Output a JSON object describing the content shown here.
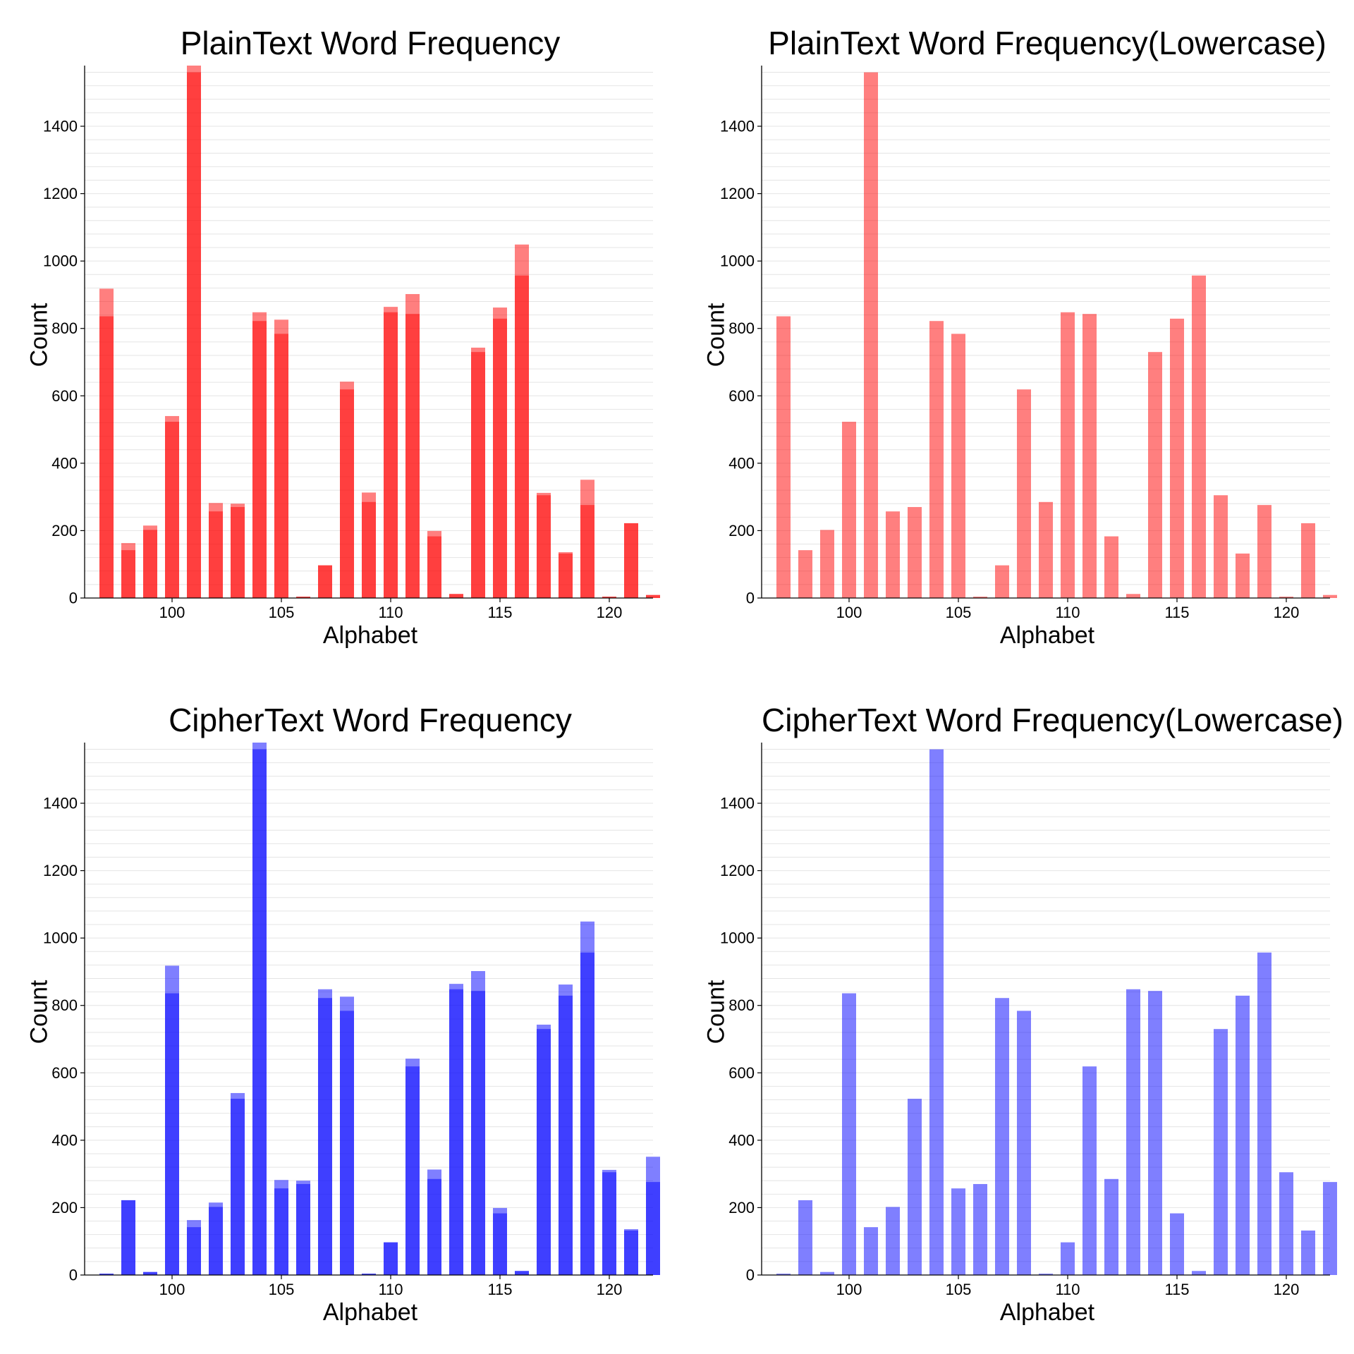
{
  "colors": {
    "plain": "#ff0000",
    "cipher": "#0000ff",
    "grid": "#e4e4e4",
    "axis": "#000000"
  },
  "chart_data": [
    {
      "type": "bar",
      "title": "PlainText Word Frequency",
      "xlabel": "Alphabet",
      "ylabel": "Count",
      "xlim": [
        96,
        122
      ],
      "ylim": [
        0,
        1580
      ],
      "xticks": [
        100,
        105,
        110,
        115,
        120
      ],
      "yticks": [
        0,
        200,
        400,
        600,
        800,
        1000,
        1200,
        1400
      ],
      "grid": "horizontal minor",
      "color": "#ff0000",
      "overlay": true,
      "x": [
        97,
        98,
        99,
        100,
        101,
        102,
        103,
        104,
        105,
        106,
        107,
        108,
        109,
        110,
        111,
        112,
        113,
        114,
        115,
        116,
        117,
        118,
        119,
        120,
        121,
        122
      ],
      "series": [
        {
          "opacity": 0.5,
          "values": [
            918,
            163,
            215,
            540,
            1580,
            282,
            280,
            848,
            826,
            4,
            97,
            642,
            313,
            864,
            902,
            199,
            12,
            743,
            862,
            1049,
            312,
            136,
            351,
            4,
            222,
            9
          ]
        },
        {
          "opacity": 0.5,
          "values": [
            836,
            142,
            202,
            523,
            1560,
            257,
            270,
            822,
            784,
            4,
            97,
            619,
            285,
            848,
            843,
            183,
            12,
            730,
            829,
            957,
            305,
            132,
            276,
            4,
            222,
            9
          ]
        }
      ]
    },
    {
      "type": "bar",
      "title": "PlainText Word Frequency(Lowercase)",
      "xlabel": "Alphabet",
      "ylabel": "Count",
      "xlim": [
        96,
        122
      ],
      "ylim": [
        0,
        1580
      ],
      "xticks": [
        100,
        105,
        110,
        115,
        120
      ],
      "yticks": [
        0,
        200,
        400,
        600,
        800,
        1000,
        1200,
        1400
      ],
      "grid": "horizontal minor",
      "color": "#ff0000",
      "overlay": false,
      "x": [
        97,
        98,
        99,
        100,
        101,
        102,
        103,
        104,
        105,
        106,
        107,
        108,
        109,
        110,
        111,
        112,
        113,
        114,
        115,
        116,
        117,
        118,
        119,
        120,
        121,
        122
      ],
      "series": [
        {
          "opacity": 0.5,
          "values": [
            836,
            142,
            202,
            523,
            1560,
            257,
            270,
            822,
            784,
            4,
            97,
            619,
            285,
            848,
            843,
            183,
            12,
            730,
            829,
            957,
            305,
            132,
            276,
            4,
            222,
            9
          ]
        }
      ]
    },
    {
      "type": "bar",
      "title": "CipherText Word Frequency",
      "xlabel": "Alphabet",
      "ylabel": "Count",
      "xlim": [
        96,
        122
      ],
      "ylim": [
        0,
        1580
      ],
      "xticks": [
        100,
        105,
        110,
        115,
        120
      ],
      "yticks": [
        0,
        200,
        400,
        600,
        800,
        1000,
        1200,
        1400
      ],
      "grid": "horizontal minor",
      "color": "#0000ff",
      "overlay": true,
      "x": [
        97,
        98,
        99,
        100,
        101,
        102,
        103,
        104,
        105,
        106,
        107,
        108,
        109,
        110,
        111,
        112,
        113,
        114,
        115,
        116,
        117,
        118,
        119,
        120,
        121,
        122
      ],
      "series": [
        {
          "opacity": 0.5,
          "values": [
            4,
            222,
            9,
            918,
            163,
            215,
            540,
            1580,
            282,
            280,
            848,
            826,
            4,
            97,
            642,
            313,
            864,
            902,
            199,
            12,
            743,
            862,
            1049,
            312,
            136,
            351
          ]
        },
        {
          "opacity": 0.5,
          "values": [
            4,
            222,
            9,
            836,
            142,
            202,
            523,
            1560,
            257,
            270,
            822,
            784,
            4,
            97,
            619,
            285,
            848,
            843,
            183,
            12,
            730,
            829,
            957,
            305,
            132,
            276
          ]
        }
      ]
    },
    {
      "type": "bar",
      "title": "CipherText Word Frequency(Lowercase)",
      "xlabel": "Alphabet",
      "ylabel": "Count",
      "xlim": [
        96,
        122
      ],
      "ylim": [
        0,
        1580
      ],
      "xticks": [
        100,
        105,
        110,
        115,
        120
      ],
      "yticks": [
        0,
        200,
        400,
        600,
        800,
        1000,
        1200,
        1400
      ],
      "grid": "horizontal minor",
      "color": "#0000ff",
      "overlay": false,
      "x": [
        97,
        98,
        99,
        100,
        101,
        102,
        103,
        104,
        105,
        106,
        107,
        108,
        109,
        110,
        111,
        112,
        113,
        114,
        115,
        116,
        117,
        118,
        119,
        120,
        121,
        122
      ],
      "series": [
        {
          "opacity": 0.5,
          "values": [
            4,
            222,
            9,
            836,
            142,
            202,
            523,
            1560,
            257,
            270,
            822,
            784,
            4,
            97,
            619,
            285,
            848,
            843,
            183,
            12,
            730,
            829,
            957,
            305,
            132,
            276
          ]
        }
      ]
    }
  ]
}
